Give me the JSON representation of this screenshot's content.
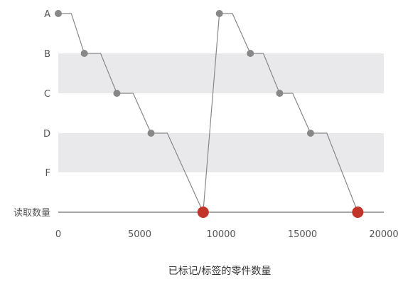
{
  "chart_data": {
    "type": "line",
    "title": "",
    "xlabel": "已标记/标签的零件数量",
    "ylabel": "",
    "xlim": [
      0,
      20000
    ],
    "x_ticks": [
      0,
      5000,
      10000,
      15000,
      20000
    ],
    "y_categories": [
      "读取数量",
      "F",
      "D",
      "C",
      "B",
      "A"
    ],
    "bands": [
      "B",
      "D"
    ],
    "grid": false,
    "legend": "none",
    "series": [
      {
        "color": "#888888",
        "points": [
          {
            "x": 0,
            "y": "A",
            "marker": "circle"
          },
          {
            "x": 800,
            "y": "A"
          },
          {
            "x": 1600,
            "y": "B",
            "marker": "circle"
          },
          {
            "x": 2600,
            "y": "B"
          },
          {
            "x": 3600,
            "y": "C",
            "marker": "circle"
          },
          {
            "x": 4600,
            "y": "C"
          },
          {
            "x": 5700,
            "y": "D",
            "marker": "circle"
          },
          {
            "x": 6700,
            "y": "D"
          },
          {
            "x": 8900,
            "y": "读取数量",
            "marker": "red"
          },
          {
            "x": 9900,
            "y": "A",
            "marker": "circle"
          },
          {
            "x": 10700,
            "y": "A"
          },
          {
            "x": 11800,
            "y": "B",
            "marker": "circle"
          },
          {
            "x": 12600,
            "y": "B"
          },
          {
            "x": 13600,
            "y": "C",
            "marker": "circle"
          },
          {
            "x": 14400,
            "y": "C"
          },
          {
            "x": 15500,
            "y": "D",
            "marker": "circle"
          },
          {
            "x": 16500,
            "y": "D"
          },
          {
            "x": 18400,
            "y": "读取数量",
            "marker": "red"
          }
        ]
      }
    ],
    "colors": {
      "line": "#888888",
      "marker": "#888888",
      "highlight": "#c0342a",
      "band": "#e9e9eb",
      "axis": "#888888"
    }
  }
}
